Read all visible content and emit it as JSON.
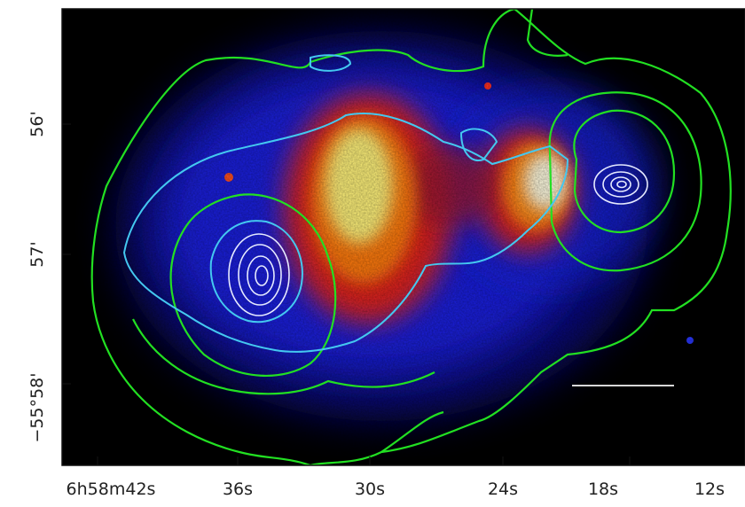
{
  "figure": {
    "description_colors": {
      "background": "#000000",
      "low_emission": "#1a2aff",
      "mid_emission": "#ff2a10",
      "high_emission": "#fff27a",
      "contour_outer": "#22e022",
      "contour_mid": "#44c8f0",
      "contour_inner": "#e6eaff"
    },
    "x_ticks": [
      "6h58m42s",
      "36s",
      "30s",
      "24s",
      "18s",
      "12s"
    ],
    "y_ticks": [
      "56'",
      "57'",
      "−55°58'"
    ],
    "scale_bar": true
  }
}
